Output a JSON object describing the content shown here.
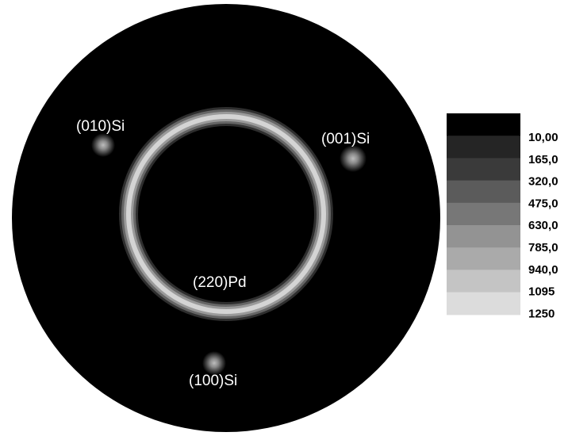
{
  "figure": {
    "pole_labels": {
      "si_010": "(010)Si",
      "si_001": "(001)Si",
      "pd_220": "(220)Pd",
      "si_100": "(100)Si"
    },
    "legend": {
      "levels": [
        "10,00",
        "165,0",
        "320,0",
        "475,0",
        "630,0",
        "785,0",
        "940,0",
        "1095",
        "1250"
      ],
      "colors": [
        "#000000",
        "#252525",
        "#3a3a3a",
        "#5b5b5b",
        "#777777",
        "#939393",
        "#aaaaaa",
        "#c4c4c4",
        "#dcdcdc"
      ]
    },
    "colors": {
      "background_disk": "#000000",
      "ring_outer": "#8c8c8c",
      "ring_inner": "#d8d8d8"
    }
  }
}
